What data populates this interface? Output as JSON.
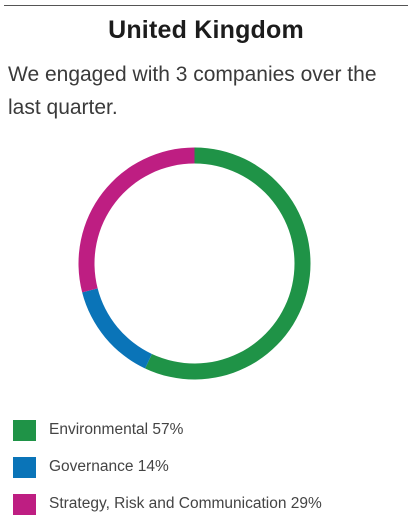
{
  "header": {
    "title": "United Kingdom",
    "subtitle": "We engaged with 3 companies over the last quarter."
  },
  "chart_data": {
    "type": "pie",
    "title": "",
    "series": [
      {
        "name": "Environmental",
        "value": 57,
        "label": "Environmental 57%",
        "color": "#1f9347"
      },
      {
        "name": "Governance",
        "value": 14,
        "label": "Governance 14%",
        "color": "#0a74b8"
      },
      {
        "name": "Strategy, Risk and Communication",
        "value": 29,
        "label": "Strategy, Risk and Communication 29%",
        "color": "#be1e82"
      }
    ],
    "legend_position": "bottom-left"
  }
}
